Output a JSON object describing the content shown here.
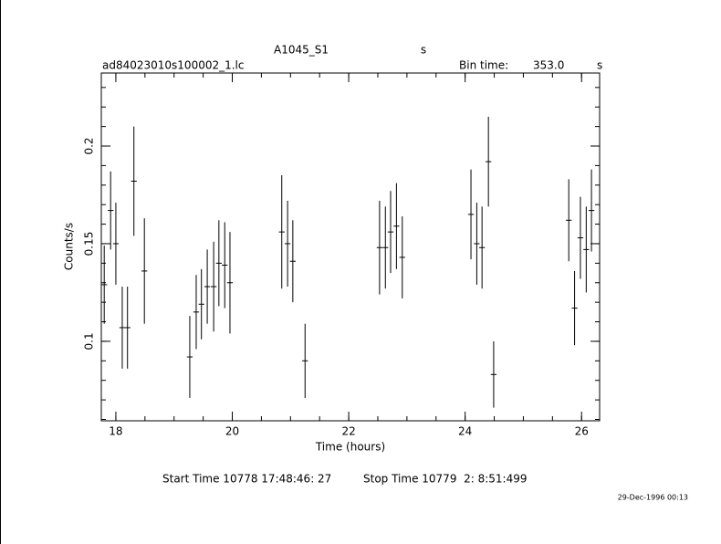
{
  "chart_data": {
    "type": "errorbar",
    "title": "A1045_S1",
    "title_unit": "s",
    "file": "ad84023010s100002_1.lc",
    "bin_label": "Bin time:",
    "bin_value": "353.0",
    "bin_unit": "s",
    "xlabel": "Time (hours)",
    "ylabel": "Counts/s",
    "start_time": "Start Time 10778 17:48:46: 27",
    "stop_time": "Stop Time 10779  2: 8:51:499",
    "date": "29-Dec-1996 00:13",
    "color": "#000000",
    "xlim": [
      17.75,
      26.31
    ],
    "ylim": [
      0.0593,
      0.2374
    ],
    "xticks": [
      18,
      20,
      22,
      24,
      26
    ],
    "yticks": [
      0.1,
      0.15,
      0.2
    ],
    "xminor_ticks": [
      18,
      18.5,
      19,
      19.5,
      20,
      20.5,
      21,
      21.5,
      22,
      22.5,
      23,
      23.5,
      24,
      24.5,
      25,
      25.5,
      26
    ],
    "yminor_ticks": [
      0.06,
      0.07,
      0.08,
      0.09,
      0.1,
      0.11,
      0.12,
      0.13,
      0.14,
      0.15,
      0.16,
      0.17,
      0.18,
      0.19,
      0.2,
      0.21,
      0.22,
      0.23
    ],
    "xerr": 0.049,
    "x": [
      17.8,
      17.91,
      18.0,
      18.11,
      18.2,
      18.31,
      18.49,
      19.27,
      19.38,
      19.47,
      19.57,
      19.68,
      19.77,
      19.87,
      19.96,
      20.85,
      20.95,
      21.04,
      21.25,
      22.53,
      22.63,
      22.72,
      22.82,
      22.92,
      24.1,
      24.2,
      24.29,
      24.4,
      24.49,
      25.78,
      25.88,
      25.98,
      26.08,
      26.17
    ],
    "values": [
      0.129,
      0.167,
      0.15,
      0.107,
      0.107,
      0.182,
      0.136,
      0.092,
      0.115,
      0.119,
      0.128,
      0.128,
      0.14,
      0.139,
      0.13,
      0.156,
      0.15,
      0.141,
      0.09,
      0.148,
      0.148,
      0.156,
      0.159,
      0.143,
      0.165,
      0.15,
      0.148,
      0.192,
      0.083,
      0.162,
      0.117,
      0.153,
      0.147,
      0.167
    ],
    "yerr": [
      0.02,
      0.02,
      0.021,
      0.021,
      0.021,
      0.028,
      0.027,
      0.021,
      0.019,
      0.018,
      0.019,
      0.023,
      0.022,
      0.022,
      0.026,
      0.029,
      0.022,
      0.021,
      0.019,
      0.024,
      0.021,
      0.021,
      0.022,
      0.021,
      0.023,
      0.021,
      0.021,
      0.023,
      0.017,
      0.021,
      0.019,
      0.021,
      0.022,
      0.021
    ]
  }
}
